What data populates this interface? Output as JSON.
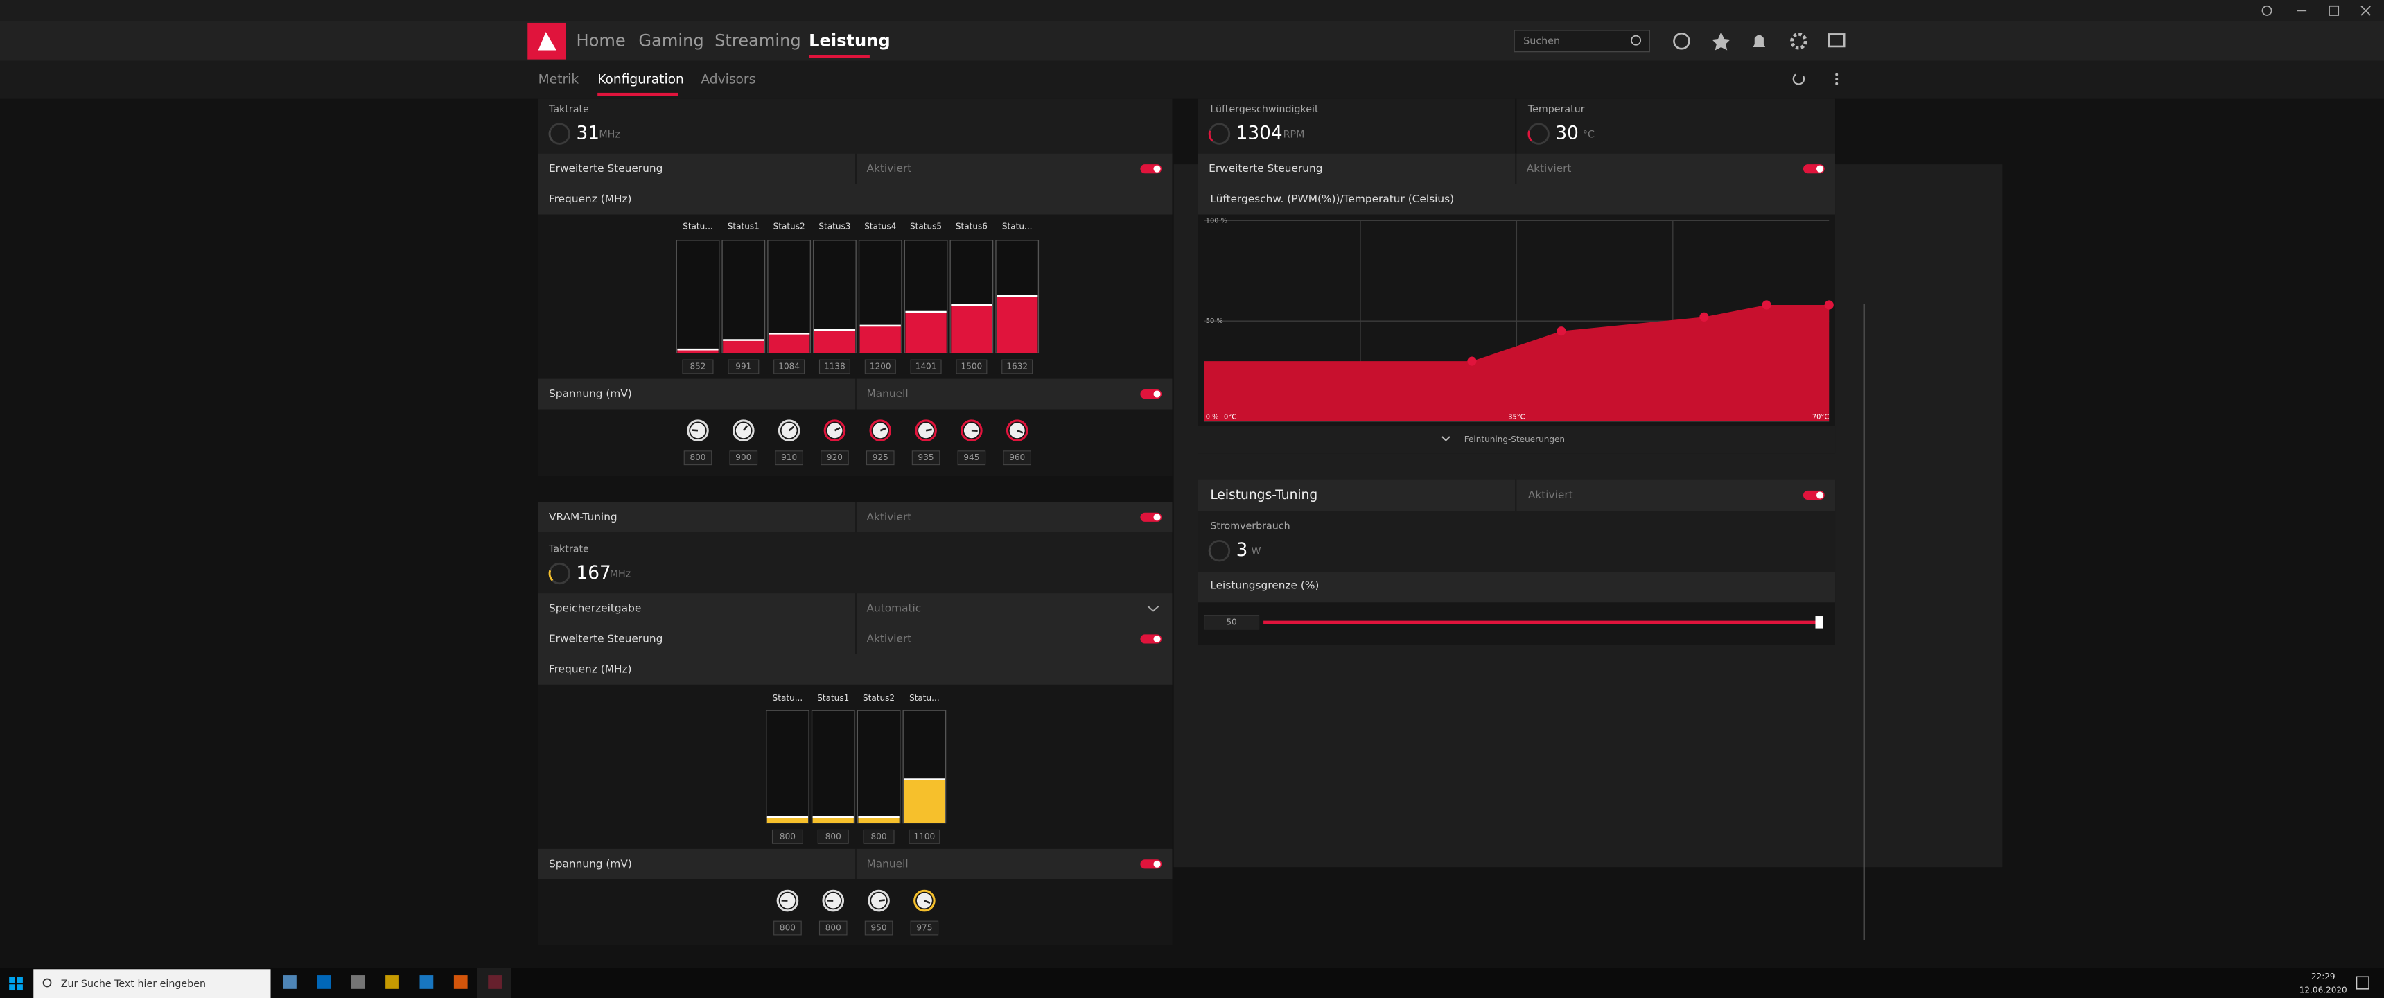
{
  "header": {
    "nav": [
      "Home",
      "Gaming",
      "Streaming",
      "Leistung"
    ],
    "search_placeholder": "Suchen"
  },
  "subnav": [
    "Metrik",
    "Konfiguration",
    "Advisors"
  ],
  "gpu": {
    "clock_label": "Taktrate",
    "clock_value": 31,
    "clock_unit": "MHz",
    "advanced": "Erweiterte Steuerung",
    "advanced_state": "Aktiviert",
    "freq_title": "Frequenz (MHz)",
    "states": [
      "Statu...",
      "Status1",
      "Status2",
      "Status3",
      "Status4",
      "Status5",
      "Status6",
      "Statu..."
    ],
    "freqs": [
      852,
      991,
      1084,
      1138,
      1200,
      1401,
      1500,
      1632
    ],
    "bar_color": "#e0143c",
    "voltage_title": "Spannung (mV)",
    "voltage_state": "Manuell",
    "voltages": [
      800,
      900,
      910,
      920,
      925,
      935,
      945,
      960
    ]
  },
  "vram": {
    "title": "VRAM-Tuning",
    "state": "Aktiviert",
    "clock_label": "Taktrate",
    "clock_value": 167,
    "clock_unit": "MHz",
    "timing_label": "Speicherzeitgabe",
    "timing_value": "Automatic",
    "advanced": "Erweiterte Steuerung",
    "advanced_state": "Aktiviert",
    "freq_title": "Frequenz (MHz)",
    "states": [
      "Statu...",
      "Status1",
      "Status2",
      "Statu..."
    ],
    "freqs": [
      800,
      800,
      800,
      1100
    ],
    "bar_color": "#f6c02c",
    "voltage_title": "Spannung (mV)",
    "voltage_state": "Manuell",
    "voltages": [
      800,
      800,
      950,
      975
    ]
  },
  "fan": {
    "speed_label": "Lüftergeschwindigkeit",
    "speed_value": 1304,
    "speed_unit": "RPM",
    "temp_label": "Temperatur",
    "temp_value": 30,
    "temp_unit": "°C",
    "advanced": "Erweiterte Steuerung",
    "advanced_state": "Aktiviert",
    "curve_title": "Lüftergeschw. (PWM(%))/Temperatur (Celsius)",
    "y_ticks": [
      {
        "value": 0,
        "label": "0 %"
      },
      {
        "value": 50,
        "label": "50 %"
      },
      {
        "value": 100,
        "label": "100 %"
      }
    ],
    "x_ticks": [
      {
        "value": 0,
        "label": "0°C"
      },
      {
        "value": 35,
        "label": "35°C"
      },
      {
        "value": 70,
        "label": "70°C"
      }
    ],
    "curve_temps": [
      30,
      40,
      56,
      63,
      70
    ],
    "curve_pwm": [
      30,
      45,
      52,
      58,
      58
    ],
    "color": "#c8102e",
    "fine_tuning": "Feintuning-Steuerungen"
  },
  "power": {
    "title": "Leistungs-Tuning",
    "state": "Aktiviert",
    "consumption_label": "Stromverbrauch",
    "consumption_value": 3,
    "consumption_unit": "W",
    "limit_label": "Leistungsgrenze (%)",
    "limit_value": 50
  },
  "taskbar": {
    "search": "Zur Suche Text hier eingeben",
    "time": "22:29",
    "date": "12.06.2020"
  }
}
